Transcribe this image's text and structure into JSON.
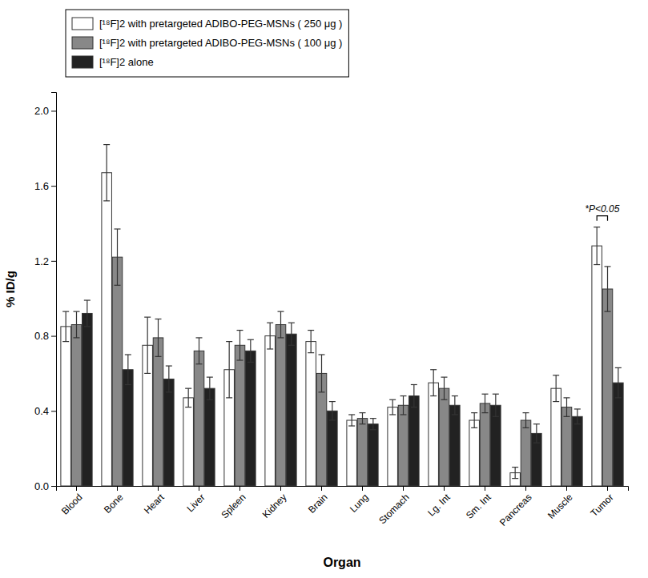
{
  "chart_data": {
    "type": "bar",
    "categories": [
      "Blood",
      "Bone",
      "Heart",
      "Liver",
      "Spleen",
      "Kidney",
      "Brain",
      "Lung",
      "Stomach",
      "Lg. Int",
      "Sm. Int",
      "Pancreas",
      "Muscle",
      "Tumor"
    ],
    "series": [
      {
        "name": "[¹⁸F]2 with pretargeted ADIBO-PEG-MSNs ( 250 μg )",
        "color": "#ffffff",
        "values": [
          0.85,
          1.67,
          0.75,
          0.47,
          0.62,
          0.8,
          0.77,
          0.35,
          0.42,
          0.55,
          0.35,
          0.07,
          0.52,
          1.28
        ],
        "errors": [
          0.08,
          0.15,
          0.15,
          0.05,
          0.15,
          0.07,
          0.06,
          0.03,
          0.04,
          0.07,
          0.04,
          0.03,
          0.07,
          0.1
        ]
      },
      {
        "name": "[¹⁸F]2 with pretargeted ADIBO-PEG-MSNs ( 100 μg )",
        "color": "#888888",
        "values": [
          0.86,
          1.22,
          0.79,
          0.72,
          0.75,
          0.86,
          0.6,
          0.36,
          0.43,
          0.52,
          0.44,
          0.35,
          0.42,
          1.05
        ],
        "errors": [
          0.07,
          0.15,
          0.1,
          0.07,
          0.08,
          0.07,
          0.1,
          0.03,
          0.05,
          0.06,
          0.05,
          0.04,
          0.05,
          0.12
        ]
      },
      {
        "name": "[¹⁸F]2 alone",
        "color": "#222222",
        "values": [
          0.92,
          0.62,
          0.57,
          0.52,
          0.72,
          0.81,
          0.4,
          0.33,
          0.48,
          0.43,
          0.43,
          0.28,
          0.37,
          0.55
        ],
        "errors": [
          0.07,
          0.08,
          0.07,
          0.06,
          0.06,
          0.06,
          0.05,
          0.03,
          0.06,
          0.05,
          0.06,
          0.05,
          0.04,
          0.08
        ]
      }
    ],
    "x_label": "Organ",
    "y_label": "% ID/g",
    "ylim": [
      0.0,
      2.1
    ],
    "yticks": [
      {
        "value": 0.0,
        "label": "0.0"
      },
      0.4,
      0.8,
      1.2,
      1.6,
      {
        "value": 2.0,
        "label": "2.0"
      }
    ],
    "annotations": [
      "*P<0.05"
    ],
    "grid": false,
    "legend": "top"
  }
}
